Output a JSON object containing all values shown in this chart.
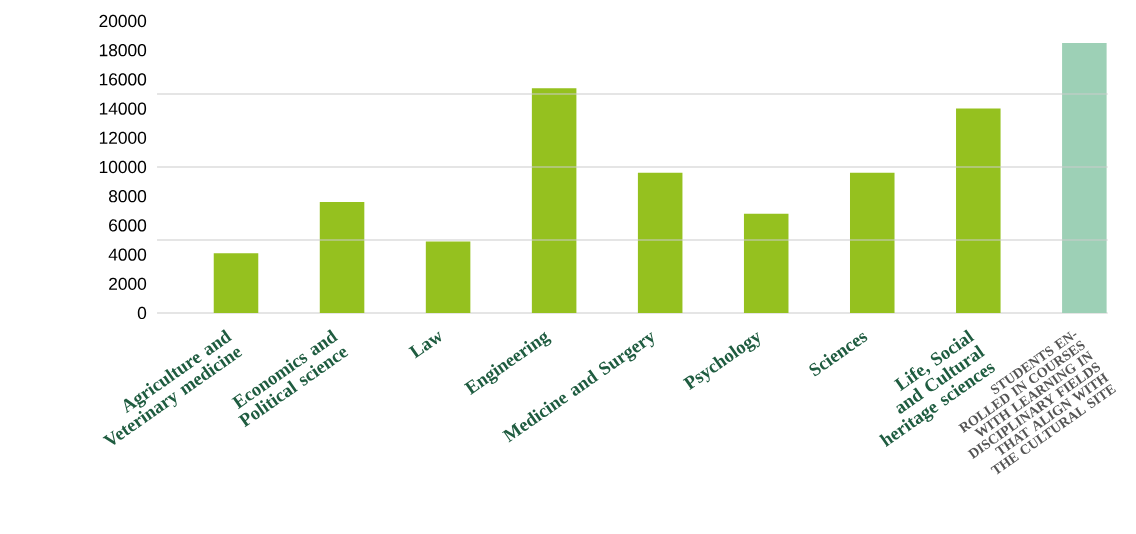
{
  "chart_data": {
    "type": "bar",
    "categories": [
      "Agriculture and Veterinary medicine",
      "Economics and Political science",
      "Law",
      "Engineering",
      "Medicine and Surgery",
      "Psychology",
      "Sciences",
      "Life, Social and Cultural heritage sciences",
      "STUDENTS EN- ROLLED IN COURSES WITH LEARNING IN DISCIPLINARY FIELDS THAT ALIGN WITH THE CULTURAL SITE"
    ],
    "values": [
      4100,
      7600,
      4900,
      15400,
      9600,
      6800,
      9600,
      14000,
      18500
    ],
    "colors": [
      "#95c11f",
      "#95c11f",
      "#95c11f",
      "#95c11f",
      "#95c11f",
      "#95c11f",
      "#95c11f",
      "#95c11f",
      "#9dd0b6"
    ],
    "ylim": [
      0,
      20000
    ],
    "yticks": [
      0,
      2000,
      4000,
      6000,
      8000,
      10000,
      12000,
      14000,
      16000,
      18000,
      20000
    ],
    "ref_lines": [
      {
        "axis": "y",
        "value": 5000,
        "color": "#cccccc"
      },
      {
        "axis": "y",
        "value": 10000,
        "color": "#cccccc"
      },
      {
        "axis": "y",
        "value": 15000,
        "color": "#cccccc"
      }
    ]
  }
}
